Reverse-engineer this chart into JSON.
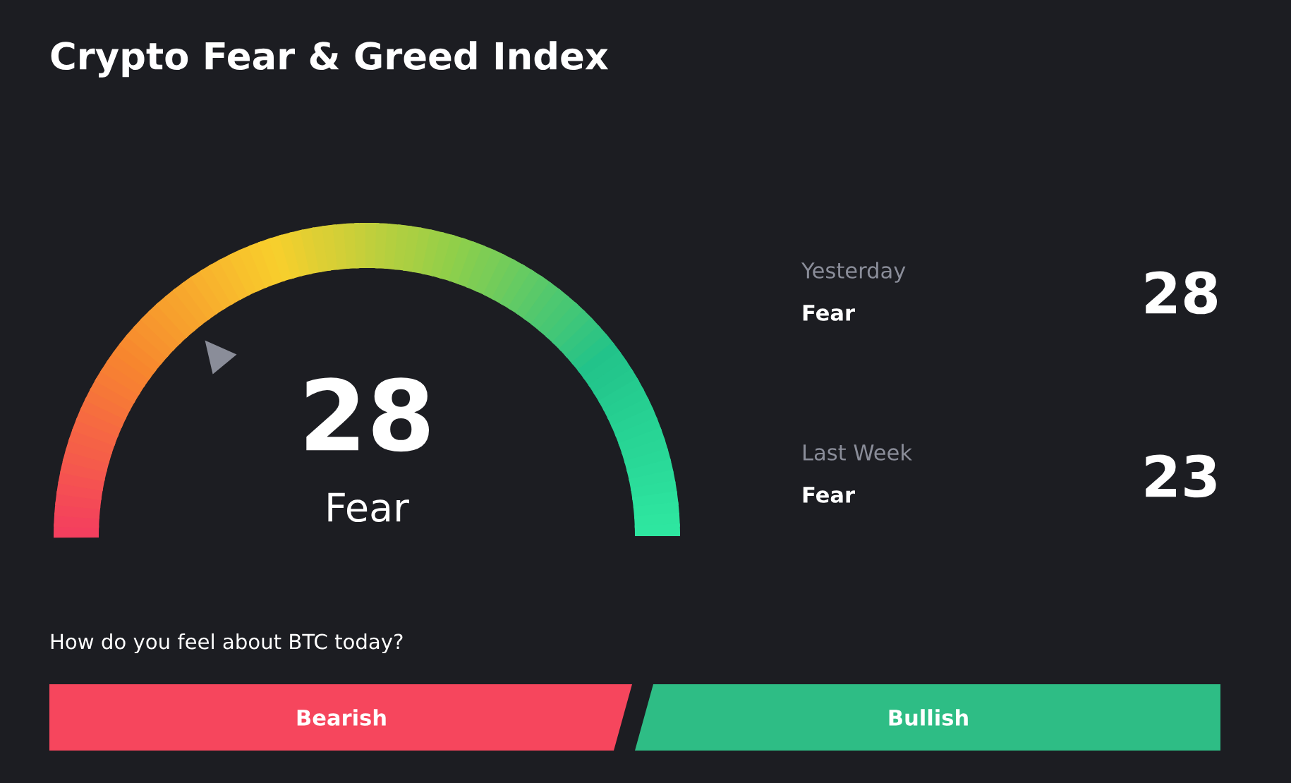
{
  "chart_data": {
    "type": "other",
    "title": "Crypto Fear & Greed Index",
    "values": [
      28
    ],
    "data_labels": true,
    "annotations": [
      "Fear",
      "Yesterday",
      "Fear",
      "28",
      "Last Week",
      "Fear",
      "23",
      "How do you feel about BTC today?",
      "Bearish",
      "Bullish"
    ]
  }
}
